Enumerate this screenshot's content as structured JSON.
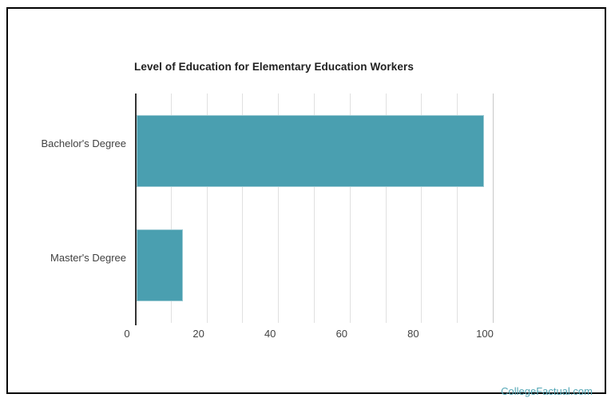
{
  "frame": {
    "border_color": "#000000",
    "background": "#ffffff"
  },
  "chart_data": {
    "type": "bar",
    "orientation": "horizontal",
    "title": "Level of Education for Elementary Education Workers",
    "categories": [
      "Bachelor's Degree",
      "Master's Degree"
    ],
    "values": [
      97,
      13
    ],
    "xlabel": "",
    "ylabel": "",
    "xlim": [
      0,
      100
    ],
    "x_ticks": [
      0,
      20,
      40,
      60,
      80,
      100
    ],
    "gridline_interval": 10,
    "grid": true,
    "legend": false,
    "bar_color": "#4A9FB0",
    "title_color": "#212121",
    "label_color": "#424242",
    "gridline_color": "#e0e0e0",
    "end_gridline_color": "#c9c9c9",
    "axis_line_color": "#333333"
  },
  "watermark": {
    "text": "CollegeFactual.com",
    "color": "#53A7B6"
  }
}
